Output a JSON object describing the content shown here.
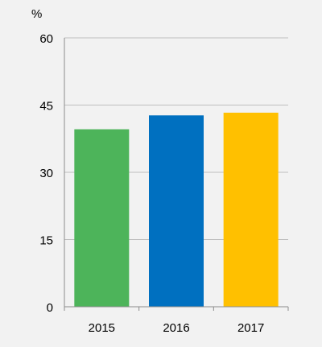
{
  "chart_data": {
    "type": "bar",
    "unit_label": "%",
    "categories": [
      "2015",
      "2016",
      "2017"
    ],
    "values": [
      39.6,
      42.7,
      43.3
    ],
    "bar_colors": [
      "#4db45a",
      "#0070c0",
      "#ffc000"
    ],
    "yticks": [
      "0",
      "15",
      "30",
      "45",
      "60"
    ],
    "ylim": [
      0,
      60
    ],
    "grid": true,
    "legend": "none"
  },
  "colors": {
    "background": "#f2f2f2",
    "gridline": "#bfbfbf",
    "axis": "#8c8c8c",
    "text": "#000000"
  }
}
